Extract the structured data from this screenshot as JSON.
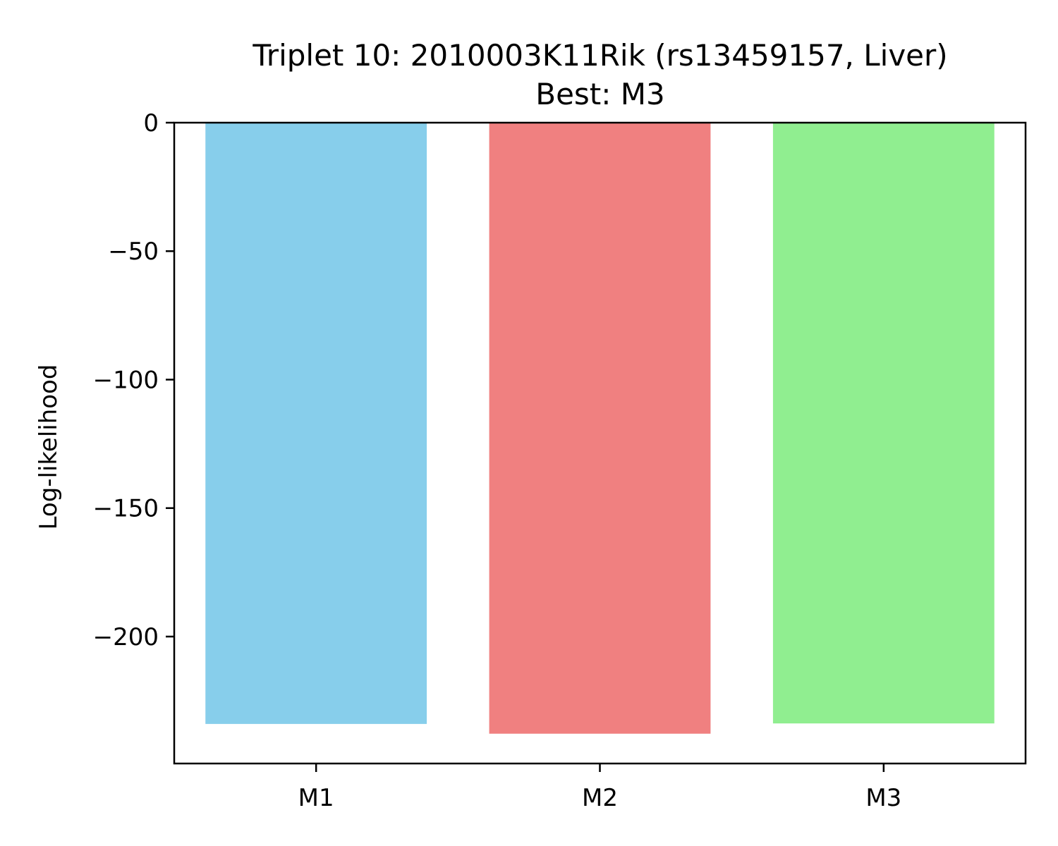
{
  "chart_data": {
    "type": "bar",
    "title": "Triplet 10: 2010003K11Rik (rs13459157, Liver)",
    "subtitle": "Best: M3",
    "categories": [
      "M1",
      "M2",
      "M3"
    ],
    "values": [
      -234,
      -237.8,
      -233.8
    ],
    "colors": [
      "#87ceeb",
      "#f08080",
      "#90ee90"
    ],
    "xlabel": "",
    "ylabel": "Log-likelihood",
    "ylim": [
      -249.4,
      0
    ],
    "yticks": [
      0,
      -50,
      -100,
      -150,
      -200
    ],
    "ytick_labels": [
      "0",
      "−50",
      "−100",
      "−150",
      "−200"
    ],
    "grid": false
  }
}
